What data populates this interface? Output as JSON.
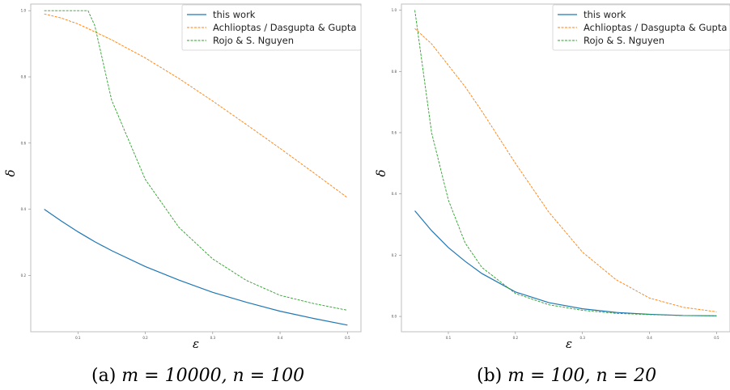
{
  "colors": {
    "this_work": "#1f77b4",
    "achlioptas": "#ff7f0e",
    "rojo": "#2ca02c",
    "axes": "#bfbfbf",
    "text": "#000000"
  },
  "captions": {
    "a": {
      "label": "(a)",
      "math": "m = 10000, n = 100"
    },
    "b": {
      "label": "(b)",
      "math": "m = 100, n = 20"
    }
  },
  "chart_data": [
    {
      "type": "line",
      "xlabel": "ε",
      "ylabel": "δ",
      "xlim": [
        0.03,
        0.52
      ],
      "ylim": [
        0.03,
        1.02
      ],
      "xticks": [
        0.1,
        0.2,
        0.3,
        0.4,
        0.5
      ],
      "yticks": [
        0.2,
        0.4,
        0.6,
        0.8,
        1.0
      ],
      "xtick_labels": [
        "0.1",
        "0.2",
        "0.3",
        "0.4",
        "0.5"
      ],
      "ytick_labels": [
        "0.2",
        "0.4",
        "0.6",
        "0.8",
        "1.0"
      ],
      "grid": false,
      "legend_position": "top-right",
      "x": [
        0.05,
        0.075,
        0.1,
        0.115,
        0.125,
        0.15,
        0.2,
        0.25,
        0.3,
        0.35,
        0.4,
        0.45,
        0.5
      ],
      "series": [
        {
          "name": "this work",
          "style": "solid",
          "color_key": "this_work",
          "values": [
            0.4,
            0.365,
            0.332,
            0.314,
            0.302,
            0.275,
            0.227,
            0.186,
            0.149,
            0.119,
            0.092,
            0.07,
            0.05
          ]
        },
        {
          "name": "Achlioptas / Dasgupta & Gupta",
          "style": "dashed",
          "color_key": "achlioptas",
          "values": [
            0.99,
            0.978,
            0.96,
            0.946,
            0.936,
            0.912,
            0.857,
            0.795,
            0.727,
            0.656,
            0.584,
            0.51,
            0.435
          ]
        },
        {
          "name": "Rojo & S. Nguyen",
          "style": "dashed",
          "color_key": "rojo",
          "values": [
            1.0,
            1.0,
            1.0,
            1.0,
            0.955,
            0.73,
            0.49,
            0.345,
            0.25,
            0.185,
            0.14,
            0.115,
            0.095
          ]
        }
      ]
    },
    {
      "type": "line",
      "xlabel": "ε",
      "ylabel": "δ",
      "xlim": [
        0.03,
        0.52
      ],
      "ylim": [
        -0.05,
        1.02
      ],
      "xticks": [
        0.1,
        0.2,
        0.3,
        0.4,
        0.5
      ],
      "yticks": [
        0.0,
        0.2,
        0.4,
        0.6,
        0.8,
        1.0
      ],
      "xtick_labels": [
        "0.1",
        "0.2",
        "0.3",
        "0.4",
        "0.5"
      ],
      "ytick_labels": [
        "0.0",
        "0.2",
        "0.4",
        "0.6",
        "0.8",
        "1.0"
      ],
      "grid": false,
      "legend_position": "top-right",
      "x": [
        0.05,
        0.075,
        0.1,
        0.125,
        0.15,
        0.2,
        0.25,
        0.3,
        0.35,
        0.4,
        0.45,
        0.5
      ],
      "series": [
        {
          "name": "this work",
          "style": "solid",
          "color_key": "this_work",
          "values": [
            0.345,
            0.28,
            0.225,
            0.18,
            0.14,
            0.08,
            0.045,
            0.025,
            0.013,
            0.007,
            0.003,
            0.002
          ]
        },
        {
          "name": "Achlioptas / Dasgupta & Gupta",
          "style": "dashed",
          "color_key": "achlioptas",
          "values": [
            0.94,
            0.89,
            0.82,
            0.75,
            0.67,
            0.5,
            0.34,
            0.21,
            0.12,
            0.06,
            0.03,
            0.015
          ]
        },
        {
          "name": "Rojo & S. Nguyen",
          "style": "dashed",
          "color_key": "rojo",
          "values": [
            1.0,
            0.6,
            0.38,
            0.24,
            0.16,
            0.075,
            0.038,
            0.02,
            0.01,
            0.006,
            0.003,
            0.002
          ]
        }
      ]
    }
  ]
}
